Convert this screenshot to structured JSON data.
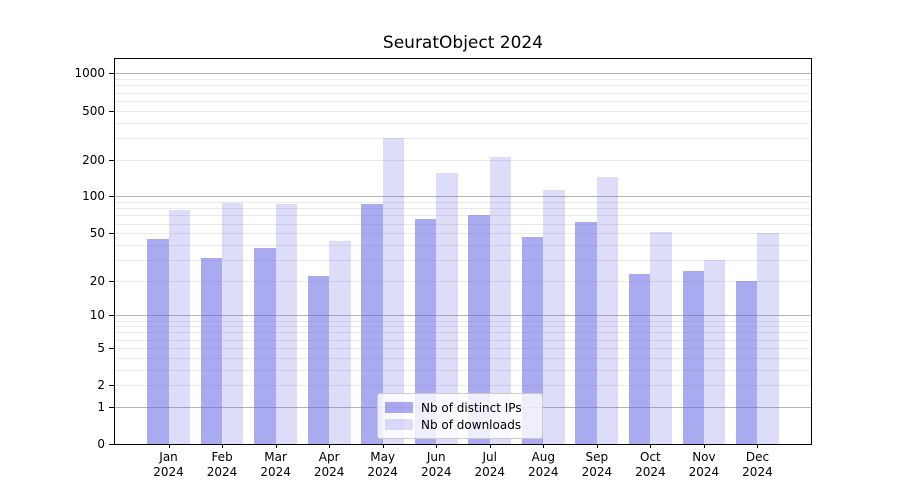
{
  "chart_data": {
    "type": "bar",
    "title": "SeuratObject 2024",
    "categories": [
      "Jan 2024",
      "Feb 2024",
      "Mar 2024",
      "Apr 2024",
      "May 2024",
      "Jun 2024",
      "Jul 2024",
      "Aug 2024",
      "Sep 2024",
      "Oct 2024",
      "Nov 2024",
      "Dec 2024"
    ],
    "series": [
      {
        "name": "Nb of distinct IPs",
        "color": "rgba(100,100,230,0.55)",
        "values": [
          45,
          31,
          38,
          22,
          87,
          65,
          70,
          46,
          62,
          23,
          24,
          20
        ]
      },
      {
        "name": "Nb of downloads",
        "color": "rgba(100,100,230,0.22)",
        "values": [
          78,
          89,
          87,
          43,
          300,
          155,
          210,
          113,
          143,
          51,
          30,
          50
        ]
      }
    ],
    "xlabel": "",
    "ylabel": "",
    "yscale": "log1p",
    "ylim": [
      0,
      1000
    ],
    "yticks": [
      0,
      1,
      2,
      5,
      10,
      20,
      50,
      100,
      200,
      500,
      1000
    ],
    "grid": true,
    "legend_position": "lower center",
    "colors": {
      "background": "#ffffff",
      "axis": "#000000",
      "text": "#000000",
      "grid_major": "#b4b4b4",
      "grid_minor": "#eaeaea"
    }
  }
}
